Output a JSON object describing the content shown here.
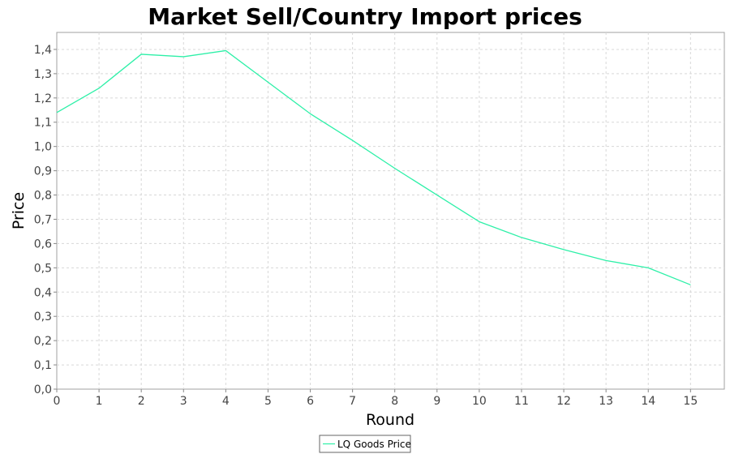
{
  "chart_data": {
    "type": "line",
    "title": "Market Sell/Country Import prices",
    "xlabel": "Round",
    "ylabel": "Price",
    "xlim": [
      0,
      15.8
    ],
    "ylim": [
      0,
      1.47
    ],
    "x_ticks": [
      "0",
      "1",
      "2",
      "3",
      "4",
      "5",
      "6",
      "7",
      "8",
      "9",
      "10",
      "11",
      "12",
      "13",
      "14",
      "15"
    ],
    "y_ticks": [
      "0,0",
      "0,1",
      "0,2",
      "0,3",
      "0,4",
      "0,5",
      "0,6",
      "0,7",
      "0,8",
      "0,9",
      "1,0",
      "1,1",
      "1,2",
      "1,3",
      "1,4"
    ],
    "grid": true,
    "legend_position": "bottom-center",
    "series": [
      {
        "name": "LQ Goods Price",
        "color": "#2ef0a8",
        "x": [
          0,
          1,
          2,
          3,
          4,
          5,
          6,
          7,
          8,
          9,
          10,
          11,
          12,
          13,
          14,
          15
        ],
        "y": [
          1.14,
          1.24,
          1.38,
          1.37,
          1.395,
          1.265,
          1.135,
          1.025,
          0.91,
          0.8,
          0.69,
          0.625,
          0.575,
          0.53,
          0.5,
          0.43
        ]
      }
    ]
  }
}
